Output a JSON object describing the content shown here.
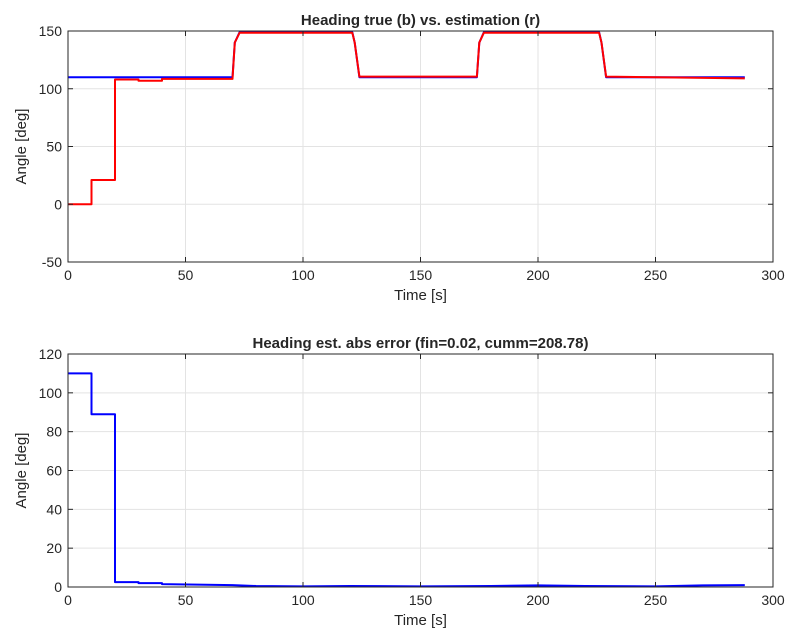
{
  "chart_data": [
    {
      "type": "line",
      "title": "Heading true (b) vs. estimation (r)",
      "xlabel": "Time [s]",
      "ylabel": "Angle [deg]",
      "xlim": [
        0,
        300
      ],
      "ylim": [
        -50,
        150
      ],
      "xticks": [
        0,
        50,
        100,
        150,
        200,
        250,
        300
      ],
      "yticks": [
        -50,
        0,
        50,
        100,
        150
      ],
      "grid": true,
      "series": [
        {
          "color": "#0000ff",
          "x": [
            0,
            70,
            71,
            73,
            121,
            122,
            124,
            174,
            175,
            177,
            226,
            227,
            229,
            288
          ],
          "y": [
            110,
            110,
            140,
            149,
            149,
            140,
            110,
            110,
            140,
            149,
            149,
            140,
            110,
            110
          ]
        },
        {
          "color": "#ff0000",
          "x": [
            0,
            10,
            10,
            20,
            20,
            30,
            30,
            40,
            40,
            70,
            71,
            73,
            121,
            122,
            124,
            174,
            175,
            177,
            226,
            227,
            229,
            288
          ],
          "y": [
            0,
            0,
            21,
            21,
            108,
            108,
            107,
            107,
            108.5,
            108.5,
            140,
            148.5,
            148.5,
            140,
            110.5,
            110.5,
            140,
            148.5,
            148.5,
            140,
            110.5,
            109
          ]
        }
      ]
    },
    {
      "type": "line",
      "title": "Heading est. abs error (fin=0.02, cumm=208.78)",
      "xlabel": "Time [s]",
      "ylabel": "Angle [deg]",
      "xlim": [
        0,
        300
      ],
      "ylim": [
        0,
        120
      ],
      "xticks": [
        0,
        50,
        100,
        150,
        200,
        250,
        300
      ],
      "yticks": [
        0,
        20,
        40,
        60,
        80,
        100,
        120
      ],
      "grid": true,
      "series": [
        {
          "color": "#0000ff",
          "x": [
            0,
            10,
            10,
            20,
            20,
            30,
            30,
            40,
            40,
            70,
            80,
            100,
            120,
            150,
            180,
            200,
            220,
            250,
            270,
            288
          ],
          "y": [
            110,
            110,
            89,
            89,
            2.5,
            2.5,
            2,
            2,
            1.5,
            1,
            0.5,
            0.3,
            0.5,
            0.3,
            0.5,
            0.8,
            0.5,
            0.3,
            0.8,
            1
          ]
        }
      ]
    }
  ]
}
